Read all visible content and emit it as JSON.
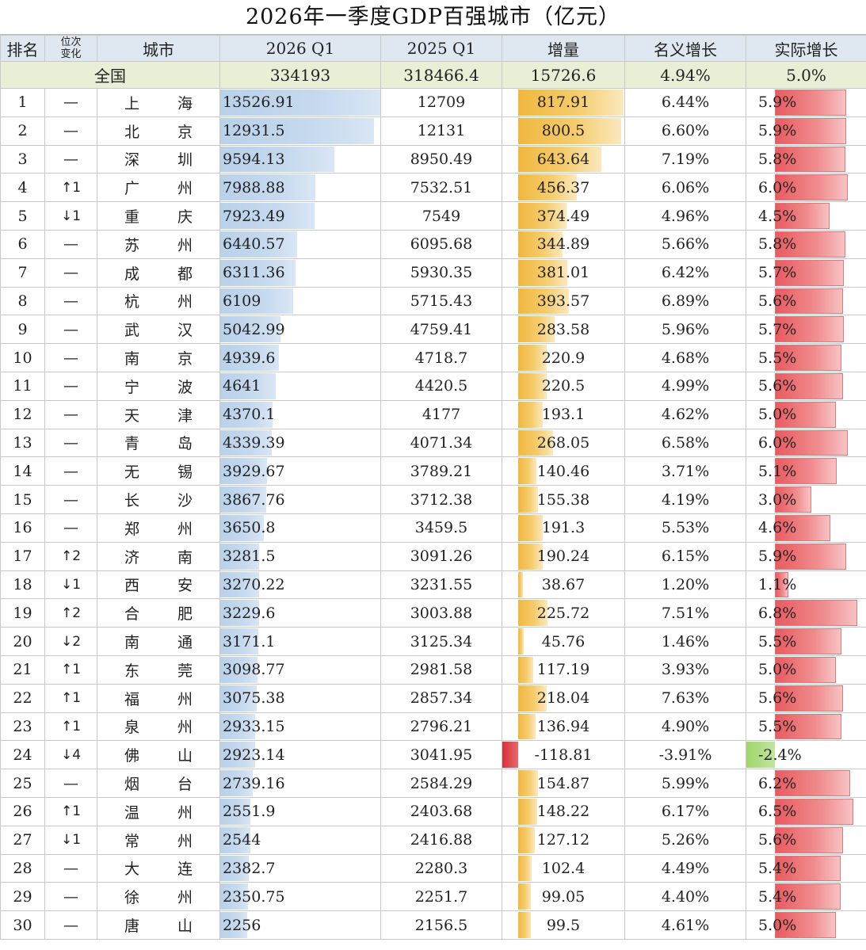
{
  "title": "2026年一季度GDP百强城市（亿元）",
  "headers": {
    "rank": "排名",
    "change_line1": "位次",
    "change_line2": "变化",
    "city": "城市",
    "q1_2026": "2026 Q1",
    "q1_2025": "2025 Q1",
    "increase": "增量",
    "nominal": "名义增长",
    "real": "实际增长"
  },
  "total": {
    "label": "全国",
    "q1_2026": "334193",
    "q1_2025": "318466.4",
    "increase": "15726.6",
    "nominal": "4.94%",
    "real": "5.0%"
  },
  "colors": {
    "header_bg": "#dfe8f1",
    "total_bg": "#e7f0d7",
    "gdp_bar": "#b9d1ea",
    "increase_bar": "#f1b73f",
    "negative_bar": "#d9303a",
    "real_bar": "#e85b60",
    "real_negative_bar": "#9fd66a"
  },
  "rows": [
    {
      "rank": "1",
      "change": "—",
      "city1": "上",
      "city2": "海",
      "q1_2026": "13526.91",
      "q1_2025": "12709",
      "increase": "817.91",
      "nominal": "6.44%",
      "real": "5.9%",
      "gdp": 13526.91,
      "inc": 817.91,
      "real_v": 5.9
    },
    {
      "rank": "2",
      "change": "—",
      "city1": "北",
      "city2": "京",
      "q1_2026": "12931.5",
      "q1_2025": "12131",
      "increase": "800.5",
      "nominal": "6.60%",
      "real": "5.9%",
      "gdp": 12931.5,
      "inc": 800.5,
      "real_v": 5.9
    },
    {
      "rank": "3",
      "change": "—",
      "city1": "深",
      "city2": "圳",
      "q1_2026": "9594.13",
      "q1_2025": "8950.49",
      "increase": "643.64",
      "nominal": "7.19%",
      "real": "5.8%",
      "gdp": 9594.13,
      "inc": 643.64,
      "real_v": 5.8
    },
    {
      "rank": "4",
      "change": "↑1",
      "city1": "广",
      "city2": "州",
      "q1_2026": "7988.88",
      "q1_2025": "7532.51",
      "increase": "456.37",
      "nominal": "6.06%",
      "real": "6.0%",
      "gdp": 7988.88,
      "inc": 456.37,
      "real_v": 6.0
    },
    {
      "rank": "5",
      "change": "↓1",
      "city1": "重",
      "city2": "庆",
      "q1_2026": "7923.49",
      "q1_2025": "7549",
      "increase": "374.49",
      "nominal": "4.96%",
      "real": "4.5%",
      "gdp": 7923.49,
      "inc": 374.49,
      "real_v": 4.5
    },
    {
      "rank": "6",
      "change": "—",
      "city1": "苏",
      "city2": "州",
      "q1_2026": "6440.57",
      "q1_2025": "6095.68",
      "increase": "344.89",
      "nominal": "5.66%",
      "real": "5.8%",
      "gdp": 6440.57,
      "inc": 344.89,
      "real_v": 5.8
    },
    {
      "rank": "7",
      "change": "—",
      "city1": "成",
      "city2": "都",
      "q1_2026": "6311.36",
      "q1_2025": "5930.35",
      "increase": "381.01",
      "nominal": "6.42%",
      "real": "5.7%",
      "gdp": 6311.36,
      "inc": 381.01,
      "real_v": 5.7
    },
    {
      "rank": "8",
      "change": "—",
      "city1": "杭",
      "city2": "州",
      "q1_2026": "6109",
      "q1_2025": "5715.43",
      "increase": "393.57",
      "nominal": "6.89%",
      "real": "5.6%",
      "gdp": 6109,
      "inc": 393.57,
      "real_v": 5.6
    },
    {
      "rank": "9",
      "change": "—",
      "city1": "武",
      "city2": "汉",
      "q1_2026": "5042.99",
      "q1_2025": "4759.41",
      "increase": "283.58",
      "nominal": "5.96%",
      "real": "5.7%",
      "gdp": 5042.99,
      "inc": 283.58,
      "real_v": 5.7
    },
    {
      "rank": "10",
      "change": "—",
      "city1": "南",
      "city2": "京",
      "q1_2026": "4939.6",
      "q1_2025": "4718.7",
      "increase": "220.9",
      "nominal": "4.68%",
      "real": "5.5%",
      "gdp": 4939.6,
      "inc": 220.9,
      "real_v": 5.5
    },
    {
      "rank": "11",
      "change": "—",
      "city1": "宁",
      "city2": "波",
      "q1_2026": "4641",
      "q1_2025": "4420.5",
      "increase": "220.5",
      "nominal": "4.99%",
      "real": "5.6%",
      "gdp": 4641,
      "inc": 220.5,
      "real_v": 5.6
    },
    {
      "rank": "12",
      "change": "—",
      "city1": "天",
      "city2": "津",
      "q1_2026": "4370.1",
      "q1_2025": "4177",
      "increase": "193.1",
      "nominal": "4.62%",
      "real": "5.0%",
      "gdp": 4370.1,
      "inc": 193.1,
      "real_v": 5.0
    },
    {
      "rank": "13",
      "change": "—",
      "city1": "青",
      "city2": "岛",
      "q1_2026": "4339.39",
      "q1_2025": "4071.34",
      "increase": "268.05",
      "nominal": "6.58%",
      "real": "6.0%",
      "gdp": 4339.39,
      "inc": 268.05,
      "real_v": 6.0
    },
    {
      "rank": "14",
      "change": "—",
      "city1": "无",
      "city2": "锡",
      "q1_2026": "3929.67",
      "q1_2025": "3789.21",
      "increase": "140.46",
      "nominal": "3.71%",
      "real": "5.1%",
      "gdp": 3929.67,
      "inc": 140.46,
      "real_v": 5.1
    },
    {
      "rank": "15",
      "change": "—",
      "city1": "长",
      "city2": "沙",
      "q1_2026": "3867.76",
      "q1_2025": "3712.38",
      "increase": "155.38",
      "nominal": "4.19%",
      "real": "3.0%",
      "gdp": 3867.76,
      "inc": 155.38,
      "real_v": 3.0
    },
    {
      "rank": "16",
      "change": "—",
      "city1": "郑",
      "city2": "州",
      "q1_2026": "3650.8",
      "q1_2025": "3459.5",
      "increase": "191.3",
      "nominal": "5.53%",
      "real": "4.6%",
      "gdp": 3650.8,
      "inc": 191.3,
      "real_v": 4.6
    },
    {
      "rank": "17",
      "change": "↑2",
      "city1": "济",
      "city2": "南",
      "q1_2026": "3281.5",
      "q1_2025": "3091.26",
      "increase": "190.24",
      "nominal": "6.15%",
      "real": "5.9%",
      "gdp": 3281.5,
      "inc": 190.24,
      "real_v": 5.9
    },
    {
      "rank": "18",
      "change": "↓1",
      "city1": "西",
      "city2": "安",
      "q1_2026": "3270.22",
      "q1_2025": "3231.55",
      "increase": "38.67",
      "nominal": "1.20%",
      "real": "1.1%",
      "gdp": 3270.22,
      "inc": 38.67,
      "real_v": 1.1
    },
    {
      "rank": "19",
      "change": "↑2",
      "city1": "合",
      "city2": "肥",
      "q1_2026": "3229.6",
      "q1_2025": "3003.88",
      "increase": "225.72",
      "nominal": "7.51%",
      "real": "6.8%",
      "gdp": 3229.6,
      "inc": 225.72,
      "real_v": 6.8
    },
    {
      "rank": "20",
      "change": "↓2",
      "city1": "南",
      "city2": "通",
      "q1_2026": "3171.1",
      "q1_2025": "3125.34",
      "increase": "45.76",
      "nominal": "1.46%",
      "real": "5.5%",
      "gdp": 3171.1,
      "inc": 45.76,
      "real_v": 5.5
    },
    {
      "rank": "21",
      "change": "↑1",
      "city1": "东",
      "city2": "莞",
      "q1_2026": "3098.77",
      "q1_2025": "2981.58",
      "increase": "117.19",
      "nominal": "3.93%",
      "real": "5.0%",
      "gdp": 3098.77,
      "inc": 117.19,
      "real_v": 5.0
    },
    {
      "rank": "22",
      "change": "↑1",
      "city1": "福",
      "city2": "州",
      "q1_2026": "3075.38",
      "q1_2025": "2857.34",
      "increase": "218.04",
      "nominal": "7.63%",
      "real": "5.6%",
      "gdp": 3075.38,
      "inc": 218.04,
      "real_v": 5.6
    },
    {
      "rank": "23",
      "change": "↑1",
      "city1": "泉",
      "city2": "州",
      "q1_2026": "2933.15",
      "q1_2025": "2796.21",
      "increase": "136.94",
      "nominal": "4.90%",
      "real": "5.5%",
      "gdp": 2933.15,
      "inc": 136.94,
      "real_v": 5.5
    },
    {
      "rank": "24",
      "change": "↓4",
      "city1": "佛",
      "city2": "山",
      "q1_2026": "2923.14",
      "q1_2025": "3041.95",
      "increase": "-118.81",
      "nominal": "-3.91%",
      "real": "-2.4%",
      "gdp": 2923.14,
      "inc": -118.81,
      "real_v": -2.4
    },
    {
      "rank": "25",
      "change": "—",
      "city1": "烟",
      "city2": "台",
      "q1_2026": "2739.16",
      "q1_2025": "2584.29",
      "increase": "154.87",
      "nominal": "5.99%",
      "real": "6.2%",
      "gdp": 2739.16,
      "inc": 154.87,
      "real_v": 6.2
    },
    {
      "rank": "26",
      "change": "↑1",
      "city1": "温",
      "city2": "州",
      "q1_2026": "2551.9",
      "q1_2025": "2403.68",
      "increase": "148.22",
      "nominal": "6.17%",
      "real": "6.5%",
      "gdp": 2551.9,
      "inc": 148.22,
      "real_v": 6.5
    },
    {
      "rank": "27",
      "change": "↓1",
      "city1": "常",
      "city2": "州",
      "q1_2026": "2544",
      "q1_2025": "2416.88",
      "increase": "127.12",
      "nominal": "5.26%",
      "real": "5.6%",
      "gdp": 2544,
      "inc": 127.12,
      "real_v": 5.6
    },
    {
      "rank": "28",
      "change": "—",
      "city1": "大",
      "city2": "连",
      "q1_2026": "2382.7",
      "q1_2025": "2280.3",
      "increase": "102.4",
      "nominal": "4.49%",
      "real": "5.4%",
      "gdp": 2382.7,
      "inc": 102.4,
      "real_v": 5.4
    },
    {
      "rank": "29",
      "change": "—",
      "city1": "徐",
      "city2": "州",
      "q1_2026": "2350.75",
      "q1_2025": "2251.7",
      "increase": "99.05",
      "nominal": "4.40%",
      "real": "5.4%",
      "gdp": 2350.75,
      "inc": 99.05,
      "real_v": 5.4
    },
    {
      "rank": "30",
      "change": "—",
      "city1": "唐",
      "city2": "山",
      "q1_2026": "2256",
      "q1_2025": "2156.5",
      "increase": "99.5",
      "nominal": "4.61%",
      "real": "5.0%",
      "gdp": 2256,
      "inc": 99.5,
      "real_v": 5.0
    }
  ]
}
